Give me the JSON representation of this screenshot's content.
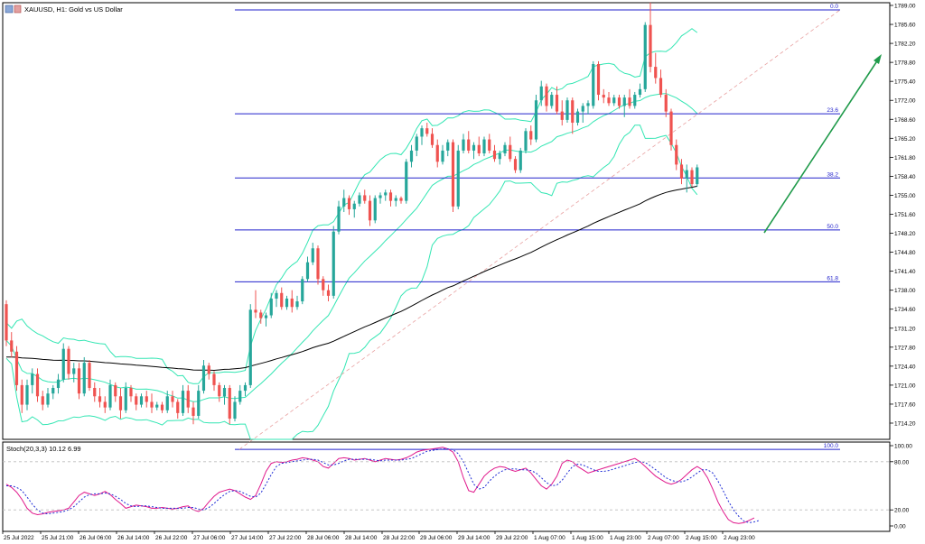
{
  "header": {
    "symbol_label": "XAUUSD, H1:  Gold vs US Dollar"
  },
  "colors": {
    "bull": "#26a69a",
    "bear": "#ef5350",
    "bollinger": "#33e6b3",
    "fib": "#2222cc",
    "ma": "#000000",
    "stoch_main": "#e0188c",
    "stoch_signal": "#1f2dd6",
    "arrow": "#1f9a4a",
    "frame": "#000000",
    "grid": "#bdbdbd"
  },
  "chart_data": [
    {
      "type": "candlestick",
      "name": "main",
      "ylim": [
        1711.5,
        1790.5
      ],
      "y_ticks": [
        "1789.00",
        "1785.60",
        "1782.20",
        "1778.80",
        "1775.40",
        "1772.00",
        "1768.60",
        "1765.20",
        "1761.80",
        "1758.40",
        "1755.00",
        "1751.60",
        "1748.20",
        "1744.80",
        "1741.40",
        "1738.00",
        "1734.60",
        "1731.20",
        "1727.80",
        "1724.40",
        "1721.00",
        "1717.60",
        "1714.20"
      ],
      "x_labels": [
        "25 Jul 2022",
        "25 Jul 21:00",
        "26 Jul 06:00",
        "26 Jul 14:00",
        "26 Jul 22:00",
        "27 Jul 06:00",
        "27 Jul 14:00",
        "27 Jul 22:00",
        "28 Jul 06:00",
        "28 Jul 14:00",
        "28 Jul 22:00",
        "29 Jul 06:00",
        "29 Jul 14:00",
        "29 Jul 22:00",
        "1 Aug 07:00",
        "1 Aug 15:00",
        "1 Aug 23:00",
        "2 Aug 07:00",
        "2 Aug 15:00",
        "2 Aug 23:00"
      ],
      "fib_levels": [
        {
          "label": "0.0",
          "price": 1788.2
        },
        {
          "label": "23.6",
          "price": 1769.6
        },
        {
          "label": "38.2",
          "price": 1758.1
        },
        {
          "label": "50.0",
          "price": 1748.8
        },
        {
          "label": "61.8",
          "price": 1739.5
        },
        {
          "label": "100.0",
          "price": 1709.5
        }
      ],
      "candles": [
        [
          1735.5,
          1736.2,
          1728.0,
          1729.0
        ],
        [
          1729.0,
          1730.5,
          1726.0,
          1727.0
        ],
        [
          1727.0,
          1728.0,
          1720.0,
          1721.0
        ],
        [
          1721.0,
          1722.0,
          1716.0,
          1717.5
        ],
        [
          1717.5,
          1722.0,
          1716.5,
          1721.0
        ],
        [
          1721.0,
          1724.0,
          1719.5,
          1723.0
        ],
        [
          1723.0,
          1724.0,
          1718.0,
          1719.0
        ],
        [
          1719.0,
          1720.0,
          1716.5,
          1717.5
        ],
        [
          1717.5,
          1720.5,
          1717.0,
          1719.5
        ],
        [
          1719.5,
          1721.0,
          1718.5,
          1720.5
        ],
        [
          1720.5,
          1723.0,
          1719.5,
          1722.0
        ],
        [
          1722.0,
          1728.5,
          1721.5,
          1727.5
        ],
        [
          1727.5,
          1728.0,
          1722.0,
          1723.0
        ],
        [
          1723.0,
          1725.0,
          1721.5,
          1724.0
        ],
        [
          1724.0,
          1725.0,
          1718.5,
          1719.5
        ],
        [
          1719.5,
          1726.0,
          1719.0,
          1725.0
        ],
        [
          1725.0,
          1725.5,
          1720.0,
          1720.5
        ],
        [
          1720.5,
          1721.5,
          1718.0,
          1719.0
        ],
        [
          1719.0,
          1720.5,
          1717.0,
          1718.0
        ],
        [
          1718.0,
          1719.0,
          1716.0,
          1717.0
        ],
        [
          1717.0,
          1722.0,
          1716.5,
          1721.0
        ],
        [
          1721.0,
          1721.5,
          1718.0,
          1719.0
        ],
        [
          1719.0,
          1720.5,
          1715.0,
          1716.5
        ],
        [
          1716.5,
          1721.5,
          1716.0,
          1720.5
        ],
        [
          1720.5,
          1721.0,
          1718.0,
          1719.0
        ],
        [
          1719.0,
          1719.5,
          1716.5,
          1717.5
        ],
        [
          1717.5,
          1719.5,
          1717.0,
          1719.0
        ],
        [
          1719.0,
          1720.0,
          1717.0,
          1718.0
        ],
        [
          1718.0,
          1719.5,
          1716.0,
          1717.0
        ],
        [
          1717.0,
          1718.0,
          1716.5,
          1717.5
        ],
        [
          1717.5,
          1718.0,
          1716.0,
          1716.5
        ],
        [
          1716.5,
          1720.0,
          1716.0,
          1719.0
        ],
        [
          1719.0,
          1720.0,
          1717.0,
          1718.0
        ],
        [
          1718.0,
          1718.5,
          1715.0,
          1716.0
        ],
        [
          1716.0,
          1721.0,
          1715.5,
          1720.0
        ],
        [
          1720.0,
          1721.0,
          1716.0,
          1717.0
        ],
        [
          1717.0,
          1718.0,
          1714.0,
          1715.5
        ],
        [
          1715.5,
          1721.0,
          1715.0,
          1720.0
        ],
        [
          1720.0,
          1725.5,
          1719.5,
          1724.5
        ],
        [
          1724.5,
          1725.0,
          1722.0,
          1723.0
        ],
        [
          1723.0,
          1723.5,
          1720.0,
          1721.0
        ],
        [
          1721.0,
          1721.5,
          1718.0,
          1719.0
        ],
        [
          1719.0,
          1721.0,
          1717.5,
          1720.5
        ],
        [
          1720.5,
          1721.0,
          1714.0,
          1715.0
        ],
        [
          1715.0,
          1719.0,
          1714.5,
          1718.0
        ],
        [
          1718.0,
          1721.0,
          1717.5,
          1720.0
        ],
        [
          1720.0,
          1721.5,
          1719.0,
          1721.0
        ],
        [
          1721.0,
          1735.5,
          1720.5,
          1734.5
        ],
        [
          1734.5,
          1738.0,
          1733.0,
          1734.0
        ],
        [
          1734.0,
          1734.5,
          1732.0,
          1733.0
        ],
        [
          1733.0,
          1734.0,
          1731.5,
          1733.5
        ],
        [
          1733.5,
          1737.5,
          1733.0,
          1736.5
        ],
        [
          1736.5,
          1738.0,
          1735.0,
          1737.5
        ],
        [
          1737.5,
          1738.5,
          1734.5,
          1735.0
        ],
        [
          1735.0,
          1737.0,
          1734.5,
          1736.5
        ],
        [
          1736.5,
          1738.0,
          1734.0,
          1735.0
        ],
        [
          1735.0,
          1737.0,
          1734.5,
          1736.0
        ],
        [
          1736.0,
          1740.5,
          1735.5,
          1740.0
        ],
        [
          1740.0,
          1744.0,
          1739.5,
          1743.0
        ],
        [
          1743.0,
          1746.5,
          1742.5,
          1745.5
        ],
        [
          1745.5,
          1746.0,
          1739.0,
          1740.0
        ],
        [
          1740.0,
          1740.5,
          1737.0,
          1738.0
        ],
        [
          1738.0,
          1739.0,
          1736.0,
          1737.0
        ],
        [
          1737.0,
          1749.5,
          1736.5,
          1748.5
        ],
        [
          1748.5,
          1754.0,
          1748.0,
          1753.0
        ],
        [
          1753.0,
          1756.0,
          1752.0,
          1754.5
        ],
        [
          1754.5,
          1755.0,
          1751.5,
          1752.5
        ],
        [
          1752.5,
          1754.0,
          1751.0,
          1753.5
        ],
        [
          1753.5,
          1755.5,
          1753.0,
          1755.0
        ],
        [
          1755.0,
          1756.0,
          1753.5,
          1754.0
        ],
        [
          1754.0,
          1755.0,
          1749.5,
          1750.5
        ],
        [
          1750.5,
          1755.0,
          1750.0,
          1754.5
        ],
        [
          1754.5,
          1755.5,
          1753.5,
          1755.0
        ],
        [
          1755.0,
          1756.0,
          1754.0,
          1755.5
        ],
        [
          1755.5,
          1756.0,
          1753.0,
          1754.0
        ],
        [
          1754.0,
          1755.0,
          1753.0,
          1754.5
        ],
        [
          1754.5,
          1754.8,
          1753.5,
          1754.0
        ],
        [
          1754.0,
          1761.5,
          1753.5,
          1761.0
        ],
        [
          1761.0,
          1764.0,
          1760.0,
          1763.0
        ],
        [
          1763.0,
          1766.0,
          1762.0,
          1765.5
        ],
        [
          1765.5,
          1767.5,
          1764.0,
          1767.0
        ],
        [
          1767.0,
          1768.0,
          1765.5,
          1766.0
        ],
        [
          1766.0,
          1767.0,
          1763.5,
          1764.0
        ],
        [
          1764.0,
          1765.0,
          1760.0,
          1761.0
        ],
        [
          1761.0,
          1764.0,
          1760.5,
          1763.0
        ],
        [
          1763.0,
          1765.0,
          1762.0,
          1764.5
        ],
        [
          1764.5,
          1765.0,
          1752.0,
          1753.0
        ],
        [
          1753.0,
          1764.0,
          1752.5,
          1763.0
        ],
        [
          1763.0,
          1766.0,
          1762.5,
          1765.0
        ],
        [
          1765.0,
          1766.5,
          1762.5,
          1763.0
        ],
        [
          1763.0,
          1764.5,
          1761.5,
          1764.0
        ],
        [
          1764.0,
          1765.5,
          1762.0,
          1762.5
        ],
        [
          1762.5,
          1765.5,
          1762.0,
          1765.0
        ],
        [
          1765.0,
          1766.0,
          1762.5,
          1763.0
        ],
        [
          1763.0,
          1764.0,
          1761.0,
          1761.5
        ],
        [
          1761.5,
          1763.0,
          1760.5,
          1762.5
        ],
        [
          1762.5,
          1764.5,
          1762.0,
          1764.0
        ],
        [
          1764.0,
          1765.5,
          1761.0,
          1761.5
        ],
        [
          1761.5,
          1762.0,
          1759.0,
          1759.5
        ],
        [
          1759.5,
          1763.5,
          1759.0,
          1763.0
        ],
        [
          1763.0,
          1767.0,
          1762.5,
          1766.5
        ],
        [
          1766.5,
          1767.5,
          1764.0,
          1765.0
        ],
        [
          1765.0,
          1773.0,
          1764.5,
          1772.0
        ],
        [
          1772.0,
          1775.5,
          1771.0,
          1774.5
        ],
        [
          1774.5,
          1775.0,
          1770.0,
          1771.0
        ],
        [
          1771.0,
          1773.5,
          1770.5,
          1773.0
        ],
        [
          1773.0,
          1774.5,
          1769.5,
          1770.0
        ],
        [
          1770.0,
          1772.0,
          1767.5,
          1768.5
        ],
        [
          1768.5,
          1772.5,
          1768.0,
          1772.0
        ],
        [
          1772.0,
          1772.5,
          1766.0,
          1768.0
        ],
        [
          1768.0,
          1770.5,
          1767.5,
          1770.0
        ],
        [
          1770.0,
          1771.5,
          1768.0,
          1771.0
        ],
        [
          1771.0,
          1772.0,
          1769.5,
          1771.5
        ],
        [
          1771.0,
          1779.0,
          1770.5,
          1778.5
        ],
        [
          1778.5,
          1779.0,
          1772.0,
          1773.0
        ],
        [
          1773.0,
          1774.0,
          1771.5,
          1772.5
        ],
        [
          1772.5,
          1773.5,
          1771.0,
          1771.5
        ],
        [
          1771.5,
          1773.0,
          1771.0,
          1772.5
        ],
        [
          1772.5,
          1773.0,
          1770.5,
          1771.0
        ],
        [
          1771.0,
          1773.0,
          1769.0,
          1772.5
        ],
        [
          1772.5,
          1774.0,
          1770.5,
          1771.0
        ],
        [
          1771.0,
          1773.5,
          1770.5,
          1773.0
        ],
        [
          1773.0,
          1775.0,
          1772.5,
          1774.0
        ],
        [
          1774.0,
          1786.0,
          1773.5,
          1785.5
        ],
        [
          1785.5,
          1789.5,
          1777.0,
          1778.0
        ],
        [
          1778.0,
          1780.5,
          1775.0,
          1776.0
        ],
        [
          1776.0,
          1777.5,
          1772.5,
          1773.0
        ],
        [
          1773.0,
          1774.0,
          1769.0,
          1770.0
        ],
        [
          1770.0,
          1770.5,
          1763.0,
          1764.0
        ],
        [
          1764.0,
          1765.0,
          1759.5,
          1760.5
        ],
        [
          1760.5,
          1761.5,
          1757.0,
          1758.0
        ],
        [
          1758.0,
          1760.5,
          1755.5,
          1759.5
        ],
        [
          1759.5,
          1760.0,
          1756.5,
          1757.0
        ],
        [
          1757.0,
          1760.5,
          1756.5,
          1760.0
        ]
      ]
    },
    {
      "type": "line",
      "name": "stochastic",
      "title": "Stoch(20,3,3) 10.12 6.99",
      "ylim": [
        0,
        100
      ],
      "y_ticks": [
        "100.00",
        "80.00",
        "20.00",
        "0.00"
      ],
      "series": [
        {
          "values": [
            52,
            48,
            42,
            33,
            22,
            16,
            14,
            15,
            17,
            18,
            19,
            20,
            22,
            30,
            38,
            42,
            40,
            38,
            40,
            43,
            39,
            33,
            28,
            22,
            24,
            26,
            25,
            24,
            22,
            22,
            23,
            22,
            21,
            22,
            24,
            25,
            20,
            18,
            22,
            30,
            37,
            42,
            44,
            46,
            44,
            40,
            36,
            33,
            38,
            52,
            68,
            78,
            80,
            79,
            80,
            82,
            83,
            85,
            84,
            82,
            80,
            74,
            72,
            78,
            84,
            85,
            84,
            82,
            83,
            84,
            82,
            80,
            82,
            84,
            83,
            82,
            83,
            85,
            88,
            92,
            94,
            95,
            96,
            97,
            98,
            96,
            92,
            80,
            60,
            44,
            42,
            52,
            62,
            68,
            72,
            74,
            73,
            70,
            68,
            70,
            72,
            66,
            58,
            50,
            46,
            52,
            62,
            78,
            82,
            80,
            74,
            70,
            66,
            68,
            70,
            72,
            74,
            76,
            78,
            80,
            82,
            84,
            80,
            74,
            68,
            62,
            58,
            54,
            52,
            54,
            58,
            64,
            70,
            74,
            70,
            60,
            46,
            30,
            18,
            8,
            4,
            3,
            4,
            7,
            10
          ]
        },
        {
          "values": [
            50,
            50,
            48,
            44,
            36,
            27,
            20,
            16,
            15,
            16,
            17,
            18,
            20,
            24,
            30,
            36,
            39,
            40,
            40,
            41,
            40,
            37,
            33,
            28,
            25,
            24,
            25,
            25,
            24,
            23,
            22,
            22,
            22,
            22,
            22,
            23,
            23,
            21,
            20,
            23,
            28,
            34,
            39,
            43,
            44,
            43,
            40,
            37,
            36,
            41,
            52,
            64,
            74,
            78,
            79,
            80,
            81,
            82,
            83,
            83,
            82,
            79,
            76,
            76,
            78,
            81,
            83,
            83,
            83,
            83,
            83,
            82,
            81,
            82,
            82,
            82,
            82,
            83,
            84,
            87,
            90,
            93,
            94,
            95,
            96,
            96,
            95,
            90,
            80,
            66,
            52,
            46,
            48,
            56,
            62,
            67,
            70,
            71,
            71,
            70,
            70,
            69,
            66,
            60,
            54,
            50,
            51,
            57,
            66,
            74,
            77,
            76,
            73,
            70,
            68,
            68,
            69,
            71,
            73,
            75,
            77,
            79,
            80,
            79,
            75,
            70,
            65,
            60,
            57,
            55,
            55,
            57,
            61,
            66,
            70,
            70,
            66,
            56,
            44,
            31,
            20,
            12,
            6,
            4,
            5,
            7
          ]
        }
      ]
    }
  ]
}
